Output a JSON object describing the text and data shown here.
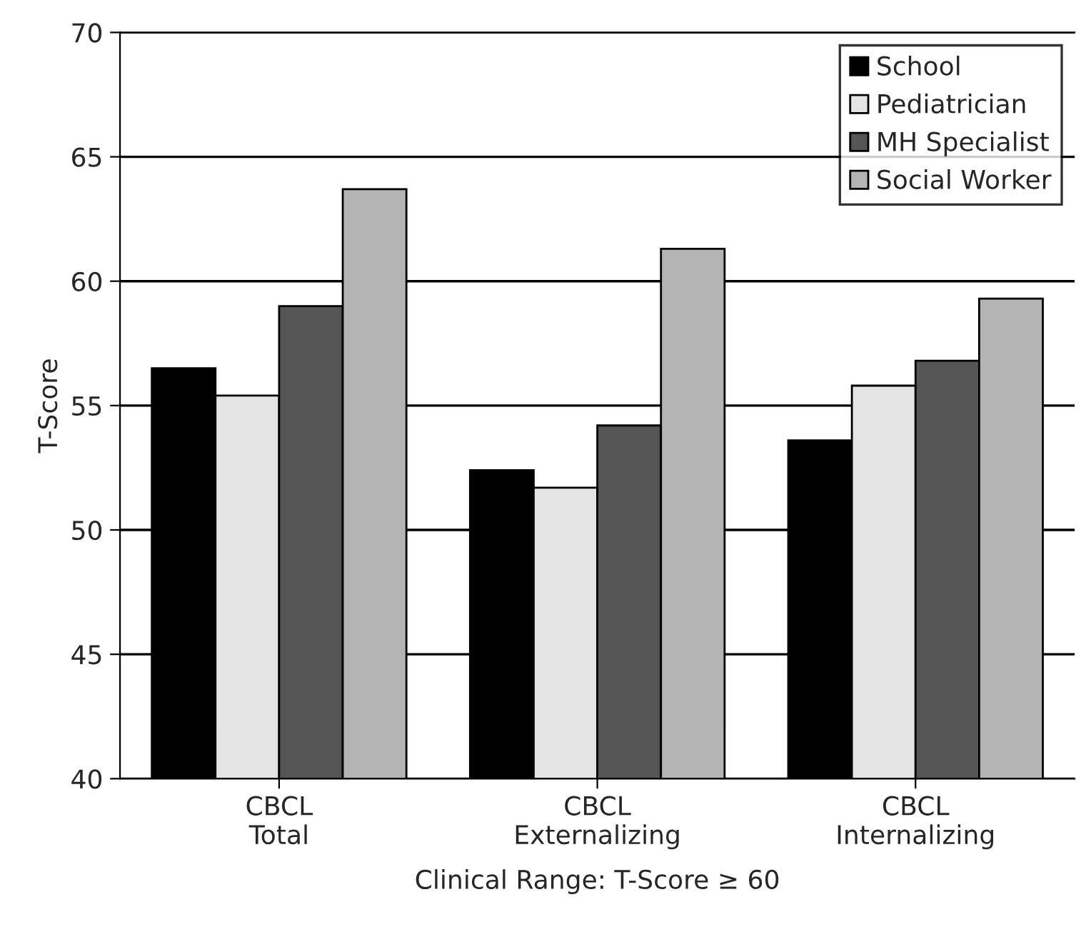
{
  "chart_data": {
    "type": "bar",
    "xlabel": "Clinical Range: T-Score ≥ 60",
    "ylabel": "T-Score",
    "categories": [
      "CBCL\nTotal",
      "CBCL\nExternalizing",
      "CBCL\nInternalizing"
    ],
    "series": [
      {
        "name": "School",
        "color": "#000000",
        "values": [
          56.5,
          52.4,
          53.6
        ]
      },
      {
        "name": "Pediatrician",
        "color": "#e4e4e4",
        "values": [
          55.4,
          51.7,
          55.8
        ]
      },
      {
        "name": "MH Specialist",
        "color": "#555555",
        "values": [
          59.0,
          54.2,
          56.8
        ]
      },
      {
        "name": "Social Worker",
        "color": "#b4b4b4",
        "values": [
          63.7,
          61.3,
          59.3
        ]
      }
    ],
    "ylim": [
      40,
      70
    ],
    "yticks": [
      40,
      45,
      50,
      55,
      60,
      65,
      70
    ],
    "grid": "y",
    "legend": "top right"
  }
}
